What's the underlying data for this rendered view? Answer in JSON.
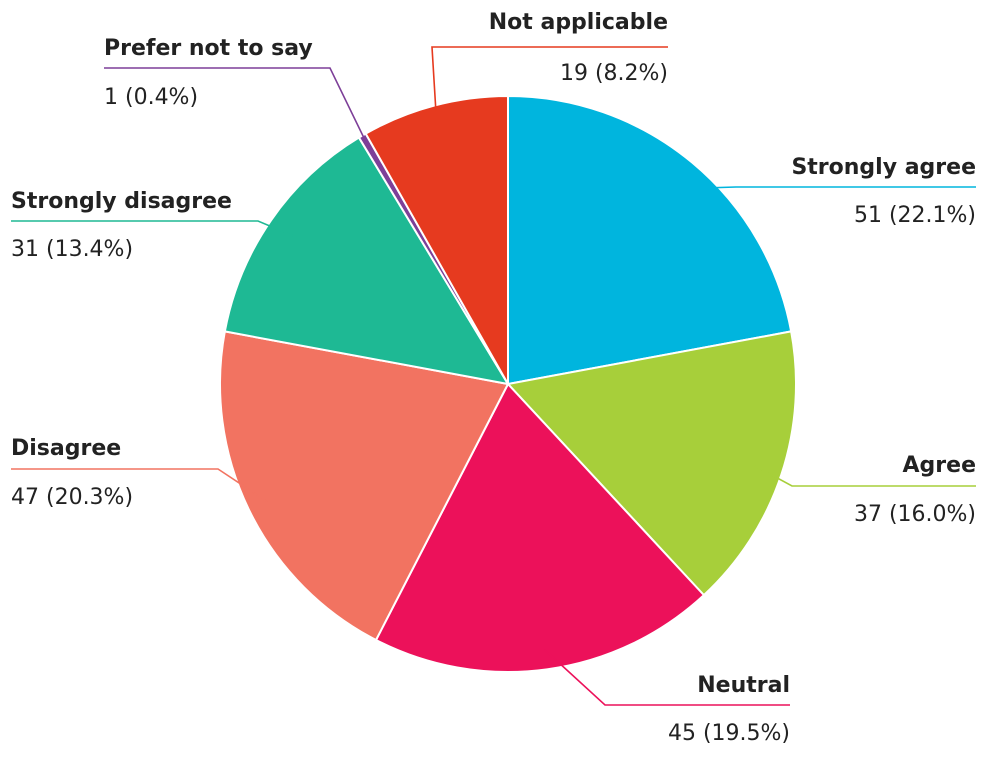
{
  "chart_data": {
    "type": "pie",
    "slices": [
      {
        "name": "Strongly agree",
        "value": 51,
        "value_label": "51 (22.1%)",
        "color": "#00b5de"
      },
      {
        "name": "Agree",
        "value": 37,
        "value_label": "37 (16.0%)",
        "color": "#a7cf3a"
      },
      {
        "name": "Neutral",
        "value": 45,
        "value_label": "45 (19.5%)",
        "color": "#ec115a"
      },
      {
        "name": "Disagree",
        "value": 47,
        "value_label": "47 (20.3%)",
        "color": "#f27361"
      },
      {
        "name": "Strongly disagree",
        "value": 31,
        "value_label": "31 (13.4%)",
        "color": "#1eb994"
      },
      {
        "name": "Prefer not to say",
        "value": 1,
        "value_label": "1 (0.4%)",
        "color": "#7d3f98"
      },
      {
        "name": "Not applicable",
        "value": 19,
        "value_label": "19 (8.2%)",
        "color": "#e63a1f"
      }
    ]
  }
}
